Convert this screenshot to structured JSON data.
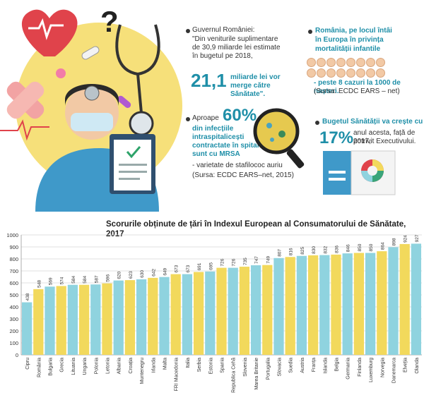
{
  "colors": {
    "teal": "#8fd3df",
    "yellow": "#f2d95c",
    "accent": "#1f8fa8",
    "bg_circle": "#f6e07a"
  },
  "icons": [
    "heart-icon",
    "question-mark-icon",
    "stethoscope-icon",
    "doctor-icon",
    "clipboard-icon",
    "bandage-icon",
    "pill-icon",
    "magnifier-icon",
    "baby-icon",
    "booklet-icon"
  ],
  "info": {
    "gov": {
      "line1": "Guvernul României:",
      "quote": "\"Din veniturile suplimentare de 30,9 miliarde lei estimate în bugetul pe 2018,",
      "big": "21,1",
      "rest": "miliarde lei vor merge către Sănătate\"."
    },
    "mortality": {
      "line1": "România, pe locul întâi",
      "line2": "în Europa în privința",
      "line3": "mortalității infantile",
      "line4": "- peste 8 cazuri la 1000 de nașteri.",
      "source": "(Sursa: ECDC EARS – net)"
    },
    "infections": {
      "lead": "Aproape",
      "big": "60%",
      "line1": "din infecțiile",
      "line2": "intraspitalicești",
      "line3": "contractate în spital",
      "line4": "sunt cu MRSA",
      "line5": "- varietate de stafilococ auriu",
      "source": "(Sursa: ECDC EARS–net, 2015)"
    },
    "budget": {
      "line1": "Bugetul Sănătății va crește cu",
      "big": "17%",
      "line2": "anul acesta, față de 2017,",
      "line3": "potrivit Executivului."
    }
  },
  "chart_data": {
    "type": "bar",
    "title": "Scorurile obținute de țări în Indexul European al Consumatorului de Sănătate, 2017",
    "ylim": [
      0,
      1000
    ],
    "yticks": [
      0,
      100,
      200,
      300,
      400,
      500,
      600,
      700,
      800,
      900,
      1000
    ],
    "categories": [
      "Cipru",
      "România",
      "Bulgaria",
      "Grecia",
      "Lituania",
      "Ungaria",
      "Polonia",
      "Letonia",
      "Albania",
      "Croația",
      "Muntenegru",
      "Irlanda",
      "Malta",
      "FRI Macedonia",
      "Italia",
      "Serbia",
      "Estonia",
      "Spania",
      "Republica Cehă",
      "Slovenia",
      "Marea Britanie",
      "Portugalia",
      "Slovacia",
      "Suedia",
      "Austria",
      "Franța",
      "Islanda",
      "Belgia",
      "Germania",
      "Finlanda",
      "Luxemburg",
      "Norvegia",
      "Danemarca",
      "Elveția",
      "Olanda"
    ],
    "values": [
      438,
      548,
      569,
      574,
      584,
      584,
      587,
      596,
      620,
      623,
      630,
      642,
      649,
      673,
      673,
      691,
      695,
      726,
      726,
      735,
      747,
      749,
      807,
      816,
      825,
      830,
      832,
      836,
      846,
      850,
      850,
      864,
      898,
      924,
      927
    ],
    "label_values": [
      "438",
      "548",
      "569",
      "574",
      "584",
      "584",
      "587",
      "596",
      "620",
      "623",
      "630",
      "642",
      "649",
      "673",
      "673",
      "691",
      "695",
      "726",
      "726",
      "735",
      "747",
      "749",
      "807",
      "816",
      "825",
      "830",
      "832",
      "836",
      "846",
      "850",
      "850",
      "864",
      "898",
      "924",
      "927"
    ],
    "grid": true,
    "legend": "none"
  }
}
